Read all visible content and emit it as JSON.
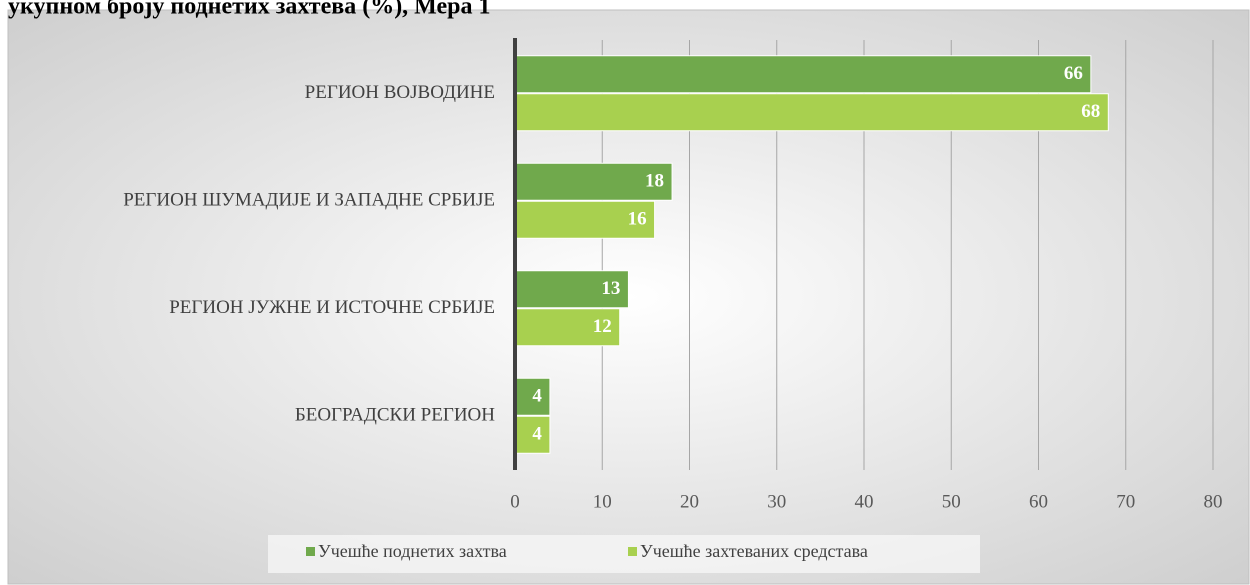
{
  "chart_data": {
    "type": "bar",
    "orientation": "horizontal",
    "title": "укупном броју поднетих захтева (%), Мера 1",
    "categories": [
      "РЕГИОН ВОЈВОДИНЕ",
      "РЕГИОН ШУМАДИЈЕ И ЗАПАДНЕ СРБИЈЕ",
      "РЕГИОН ЈУЖНЕ И ИСТОЧНЕ СРБИЈЕ",
      "БЕОГРАДСКИ РЕГИОН"
    ],
    "series": [
      {
        "name": "Учешће поднетих захтва",
        "color": "#70a94c",
        "values": [
          66,
          18,
          13,
          4
        ]
      },
      {
        "name": "Учешће захтеваних средстава",
        "color": "#a8d04f",
        "values": [
          68,
          16,
          12,
          4
        ]
      }
    ],
    "xlim": [
      0,
      80
    ],
    "xticks": [
      0,
      10,
      20,
      30,
      40,
      50,
      60,
      70,
      80
    ],
    "grid": true,
    "legend": "bottom"
  }
}
